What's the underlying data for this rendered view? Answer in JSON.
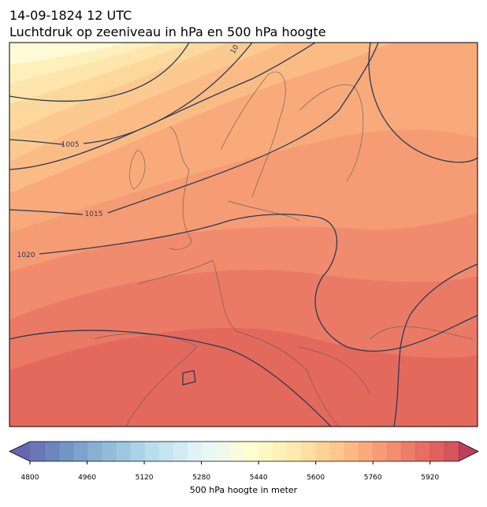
{
  "header": {
    "title": "14-09-1824 12 UTC",
    "subtitle": "Luchtdruk op zeeniveau in hPa en 500 hPa hoogte"
  },
  "contour_labels": [
    "1005",
    "1015",
    "1020",
    "10"
  ],
  "colorbar": {
    "label": "500 hPa hoogte in meter",
    "lim": [
      4800,
      6000
    ],
    "step": 40,
    "ticks": [
      4800,
      4960,
      5120,
      5280,
      5440,
      5600,
      5760,
      5920
    ],
    "colors": [
      "#313695",
      "#4575b4",
      "#74add1",
      "#abd9e9",
      "#e0f3f8",
      "#ffffbf",
      "#fee090",
      "#fdae61",
      "#f46d43",
      "#d73027",
      "#a50026"
    ]
  }
}
